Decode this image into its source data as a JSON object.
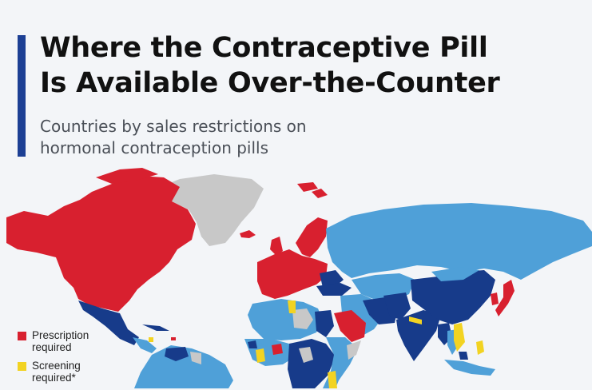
{
  "header": {
    "title_line1": "Where the Contraceptive Pill",
    "title_line2": "Is Available Over-the-Counter",
    "subtitle_line1": "Countries by sales restrictions on",
    "subtitle_line2": "hormonal contraception pills"
  },
  "legend": [
    {
      "label": "Prescription\nrequired",
      "color": "#d8202f"
    },
    {
      "label": "Screening\nrequired*",
      "color": "#f2d322"
    }
  ],
  "colors": {
    "background": "#f3f5f8",
    "accent": "#1c3f94",
    "prescription": "#d8202f",
    "screening": "#f2d322",
    "dark_blue": "#173b8a",
    "light_blue": "#4fa0d8",
    "no_data": "#c8c8c8"
  }
}
